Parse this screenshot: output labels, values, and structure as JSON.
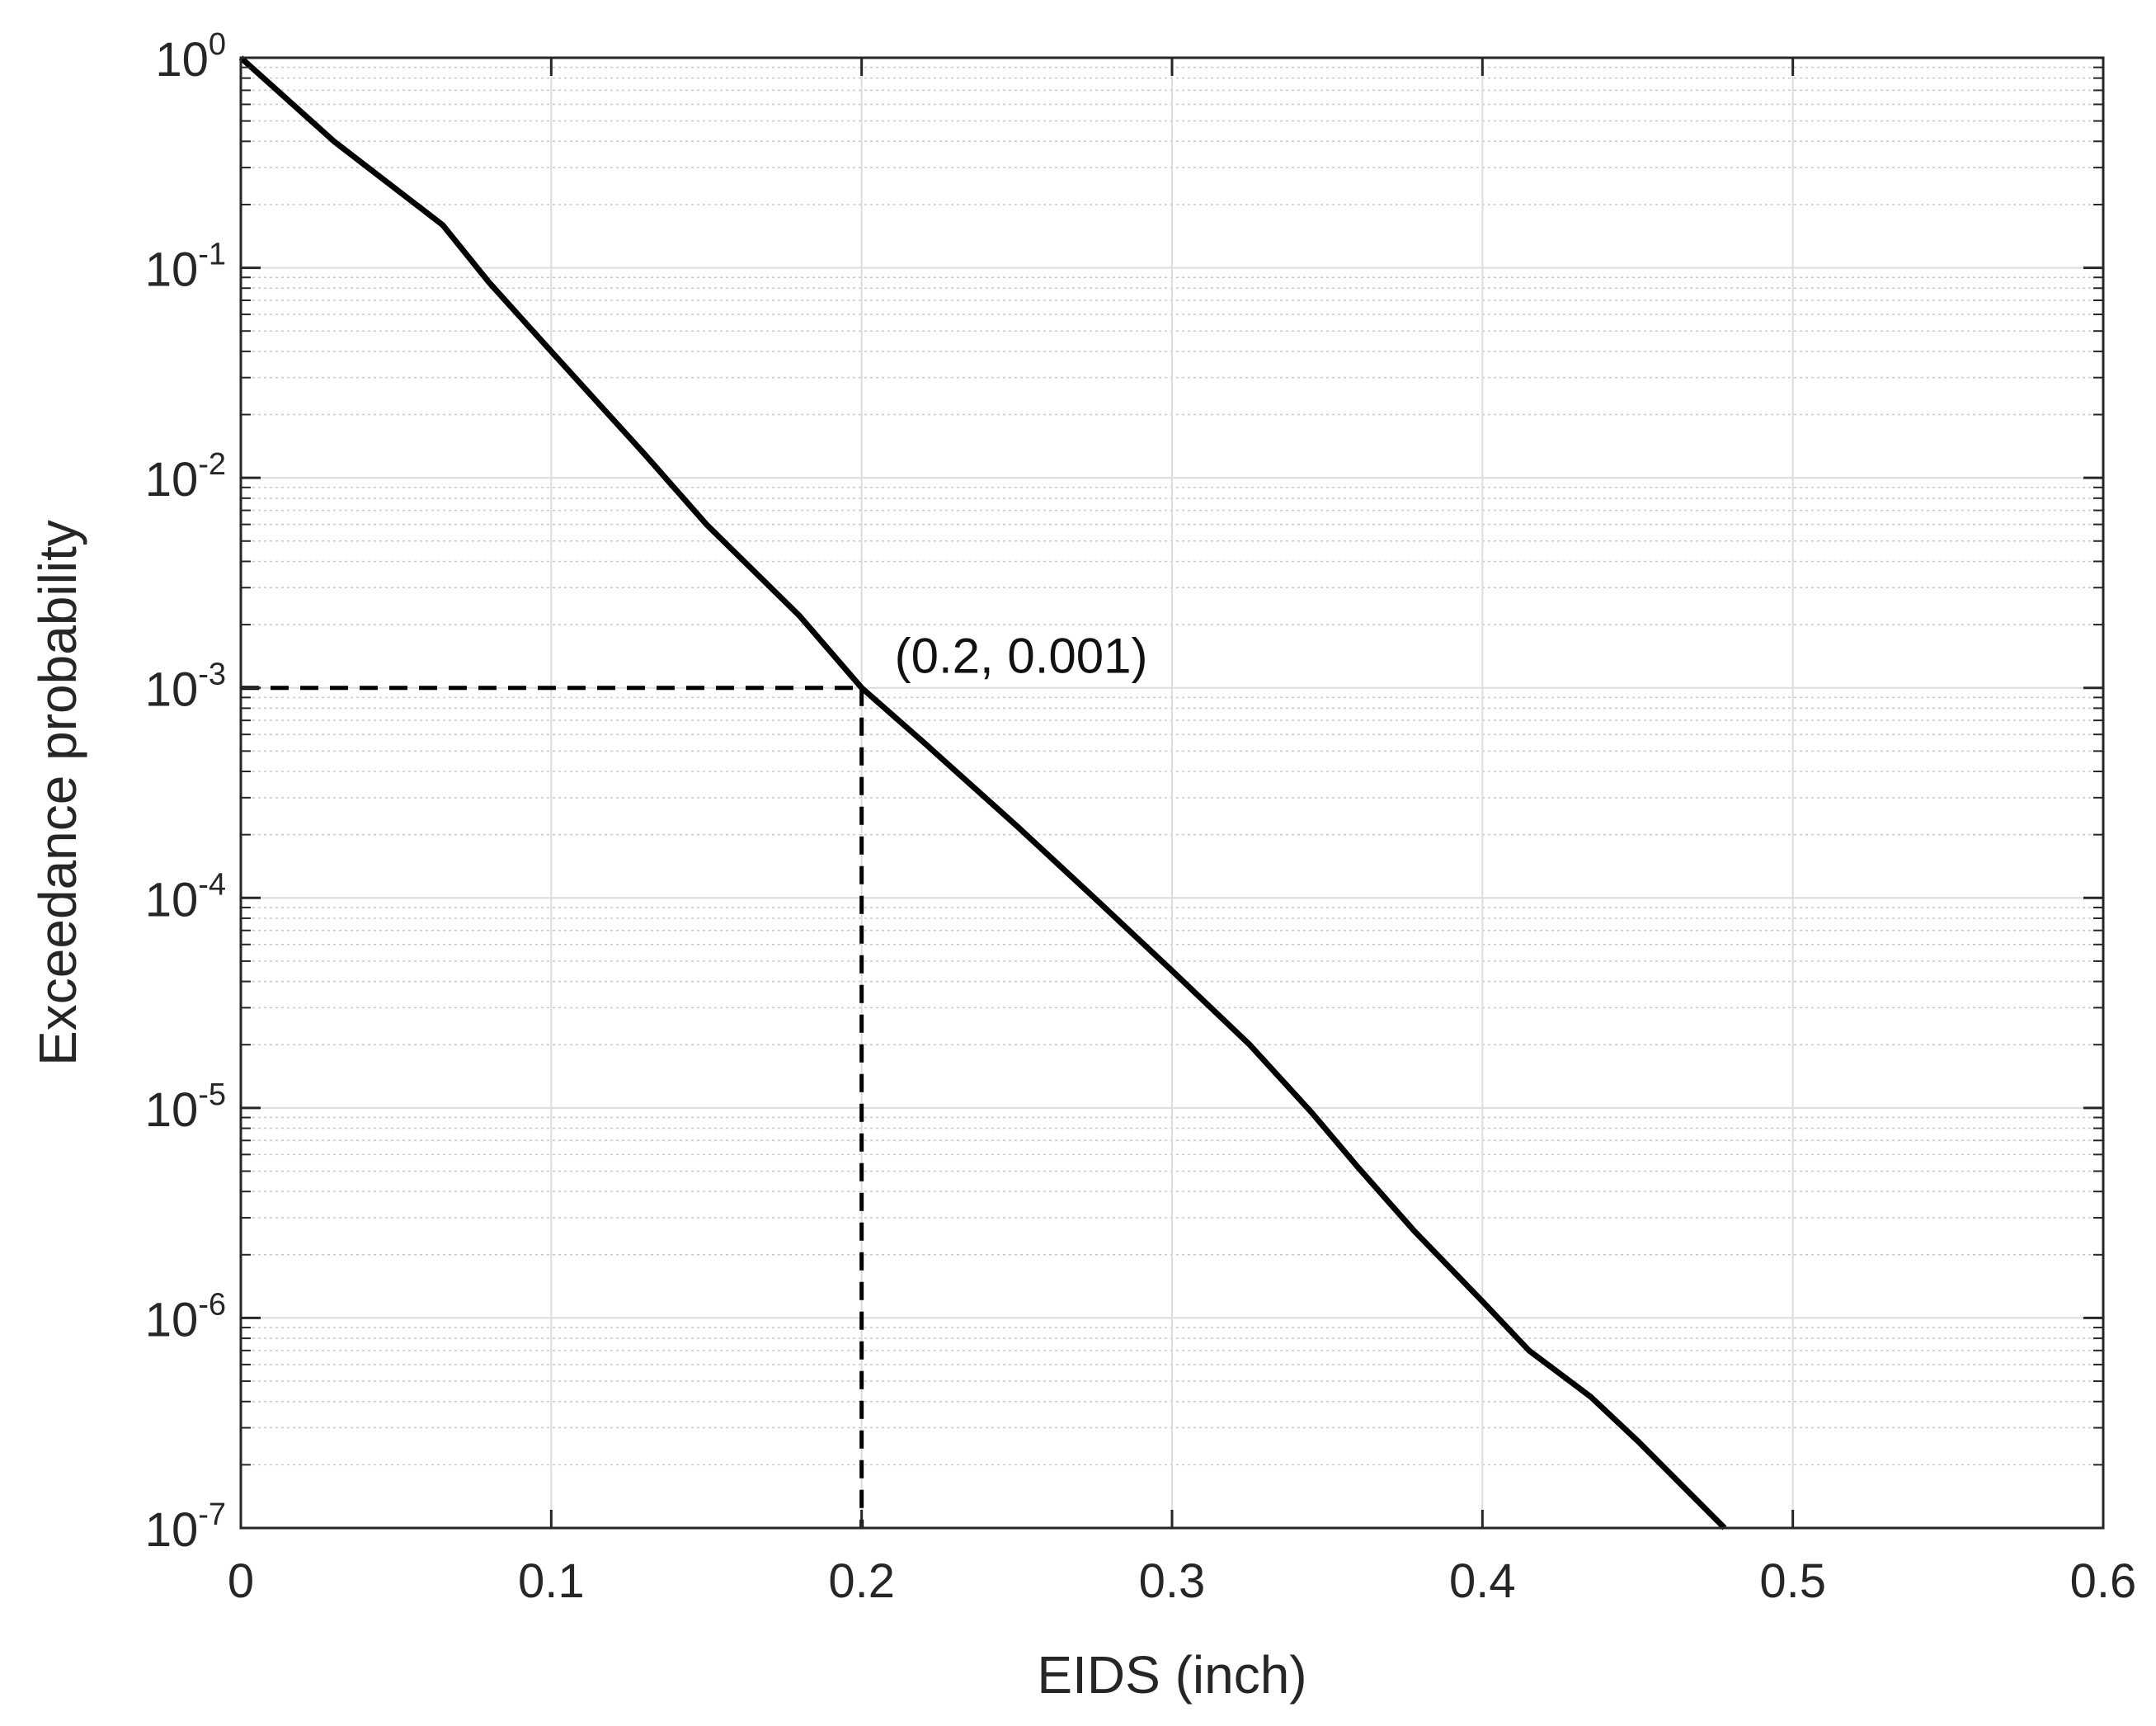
{
  "chart_data": {
    "type": "line",
    "xlabel": "EIDS (inch)",
    "ylabel": "Exceedance probability",
    "xlim": [
      0,
      0.6
    ],
    "ylim": [
      1e-07,
      1
    ],
    "yscale": "log",
    "grid": true,
    "x_ticks": [
      {
        "value": 0,
        "label": "0"
      },
      {
        "value": 0.1,
        "label": "0.1"
      },
      {
        "value": 0.2,
        "label": "0.2"
      },
      {
        "value": 0.3,
        "label": "0.3"
      },
      {
        "value": 0.4,
        "label": "0.4"
      },
      {
        "value": 0.5,
        "label": "0.5"
      },
      {
        "value": 0.6,
        "label": "0.6"
      }
    ],
    "y_ticks": [
      {
        "value": 1,
        "base": "10",
        "exp": "0"
      },
      {
        "value": 0.1,
        "base": "10",
        "exp": "-1"
      },
      {
        "value": 0.01,
        "base": "10",
        "exp": "-2"
      },
      {
        "value": 0.001,
        "base": "10",
        "exp": "-3"
      },
      {
        "value": 0.0001,
        "base": "10",
        "exp": "-4"
      },
      {
        "value": 1e-05,
        "base": "10",
        "exp": "-5"
      },
      {
        "value": 1e-06,
        "base": "10",
        "exp": "-6"
      },
      {
        "value": 1e-07,
        "base": "10",
        "exp": "-7"
      }
    ],
    "series": [
      {
        "color": "#000000",
        "style": "solid",
        "x": [
          0,
          0.03,
          0.065,
          0.08,
          0.1,
          0.13,
          0.15,
          0.18,
          0.2,
          0.22,
          0.25,
          0.275,
          0.3,
          0.325,
          0.345,
          0.36,
          0.378,
          0.4,
          0.415,
          0.435,
          0.45,
          0.478
        ],
        "y": [
          1,
          0.4,
          0.16,
          0.085,
          0.04,
          0.013,
          0.006,
          0.0022,
          0.001,
          0.00055,
          0.00022,
          0.0001,
          4.5e-05,
          2e-05,
          9.5e-06,
          5.2e-06,
          2.6e-06,
          1.2e-06,
          7e-07,
          4.2e-07,
          2.6e-07,
          1e-07
        ]
      }
    ],
    "reference_lines": {
      "color": "#000000",
      "style": "dashed",
      "point": {
        "x": 0.2,
        "y": 0.001
      }
    },
    "annotations": [
      {
        "text": "(0.2, 0.001)",
        "x": 0.2,
        "y": 0.001
      }
    ]
  }
}
